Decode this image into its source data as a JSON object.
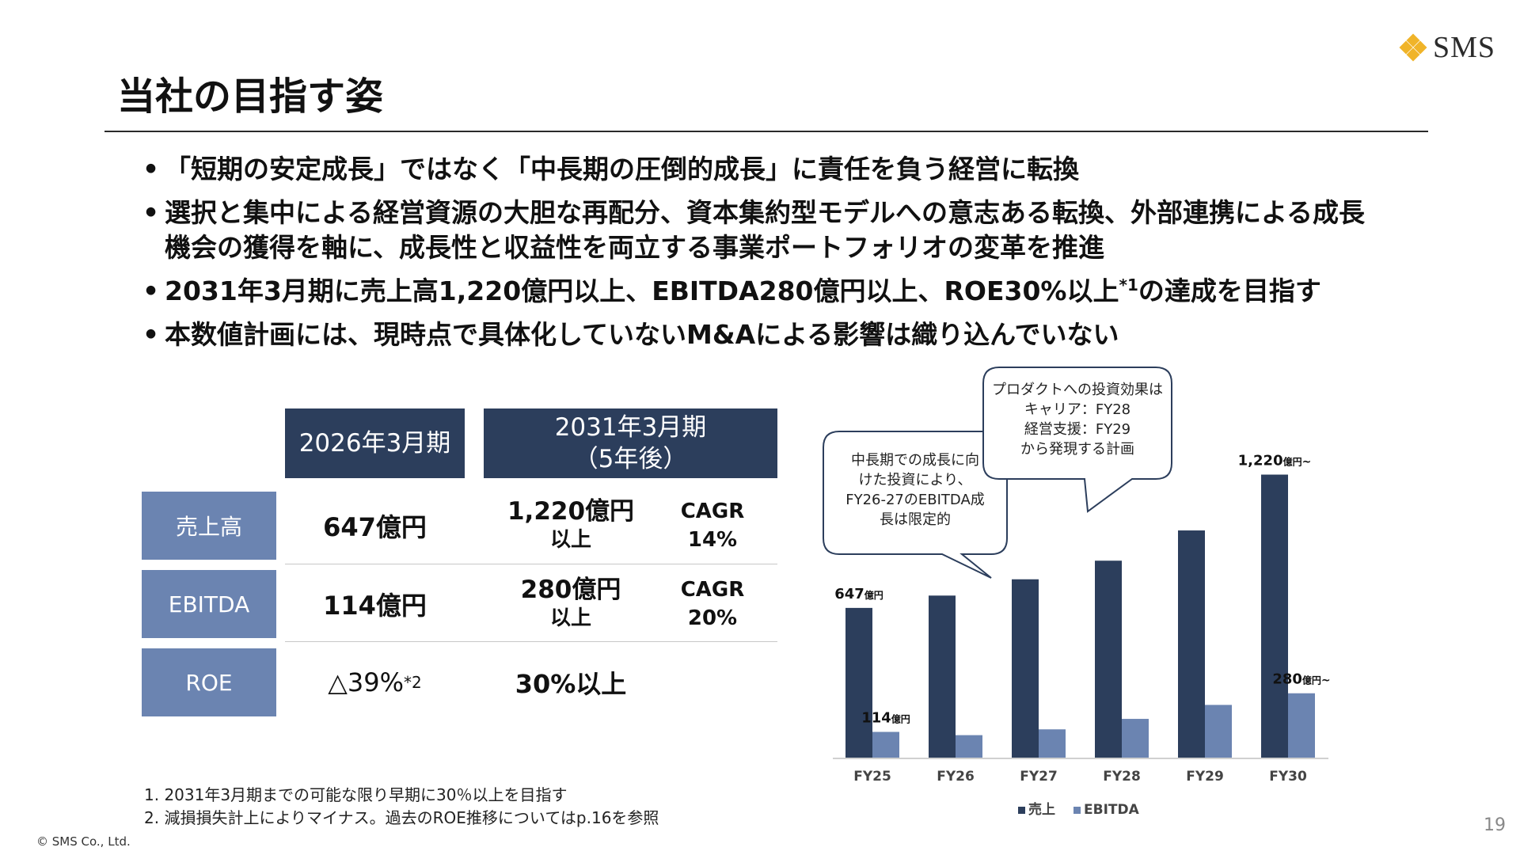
{
  "logo": {
    "text": "SMS"
  },
  "title": "当社の目指す姿",
  "bullets": [
    "「短期の安定成長」ではなく「中長期の圧倒的成長」に責任を負う経営に転換",
    "選択と集中による経営資源の大胆な再配分、資本集約型モデルへの意志ある転換、外部連携による成長機会の獲得を軸に、成長性と収益性を両立する事業ポートフォリオの変革を推進",
    {
      "before": "2031年3月期に売上高1,220億円以上、EBITDA280億円以上、ROE30%以上",
      "sup": "*1",
      "after": "の達成を目指す"
    },
    "本数値計画には、現時点で具体化していないM&Aによる影響は織り込んでいない"
  ],
  "table": {
    "col1_header": "2026年3月期",
    "col2_header_line1": "2031年3月期",
    "col2_header_line2": "（5年後）",
    "rows": [
      {
        "label": "売上高",
        "current": "647億円",
        "target_line1": "1,220億円",
        "target_line2": "以上",
        "cagr_label": "CAGR",
        "cagr_value": "14%"
      },
      {
        "label": "EBITDA",
        "current": "114億円",
        "target_line1": "280億円",
        "target_line2": "以上",
        "cagr_label": "CAGR",
        "cagr_value": "20%"
      },
      {
        "label": "ROE",
        "current": "△39%",
        "current_sup": "*2",
        "target_line1": "30%以上",
        "target_line2": "",
        "cagr_label": "",
        "cagr_value": ""
      }
    ]
  },
  "notes": [
    "1.  2031年3月期までの可能な限り早期に30％以上を目指す",
    "2.  減損損失計上によりマイナス。過去のROE推移についてはp.16を参照"
  ],
  "copyright": "© SMS Co., Ltd.",
  "page_number": "19",
  "colors": {
    "navy": "#2c3e5c",
    "blue": "#6b84b1",
    "logo_gold": "#f0b429"
  },
  "chart_data": {
    "type": "bar",
    "categories": [
      "FY25",
      "FY26",
      "FY27",
      "FY28",
      "FY29",
      "FY30"
    ],
    "series": [
      {
        "name": "売上",
        "color": "#2c3e5c",
        "values": [
          647,
          700,
          770,
          850,
          980,
          1220
        ]
      },
      {
        "name": "EBITDA",
        "color": "#6b84b1",
        "values": [
          114,
          100,
          125,
          170,
          230,
          280
        ]
      }
    ],
    "data_labels": [
      {
        "series": 0,
        "index": 0,
        "value": "647",
        "unit": "億円",
        "suffix": ""
      },
      {
        "series": 1,
        "index": 0,
        "value": "114",
        "unit": "億円",
        "suffix": ""
      },
      {
        "series": 0,
        "index": 5,
        "value": "1,220",
        "unit": "億円",
        "suffix": "~"
      },
      {
        "series": 1,
        "index": 5,
        "value": "280",
        "unit": "億円",
        "suffix": "~"
      }
    ],
    "callouts": [
      {
        "lines": [
          "中長期での成長に向",
          "けた投資により、",
          "FY26-27のEBITDA成",
          "長は限定的"
        ]
      },
      {
        "lines": [
          "プロダクトへの投資効果は",
          "キャリア：FY28",
          "経営支援：FY29",
          "から発現する計画"
        ]
      }
    ],
    "ylim": [
      0,
      1300
    ],
    "legend": "bottom",
    "grid": false
  }
}
